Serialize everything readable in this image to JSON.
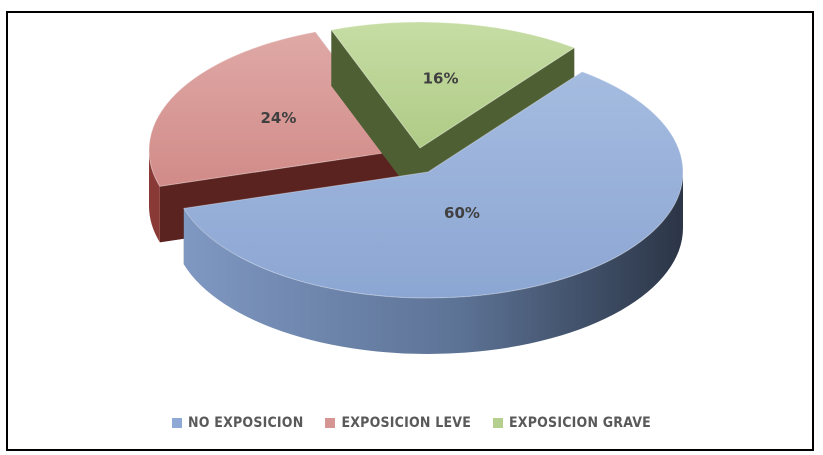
{
  "chart_data": {
    "type": "pie",
    "slices": [
      {
        "label": "NO EXPOSICION",
        "value": 60,
        "display": "60%",
        "color": "#8EA9D6",
        "side_dark": "#33415A",
        "side_light": "#7C93B9"
      },
      {
        "label": "EXPOSICION LEVE",
        "value": 24,
        "display": "24%",
        "color": "#D59592",
        "side_dark": "#5A2320",
        "side_light": "#8A3A36"
      },
      {
        "label": "EXPOSICION GRAVE",
        "value": 16,
        "display": "16%",
        "color": "#B5CF8E",
        "side_dark": "#4E5F34",
        "side_light": "#7E9652"
      }
    ],
    "legend_position": "bottom",
    "three_d": true
  }
}
